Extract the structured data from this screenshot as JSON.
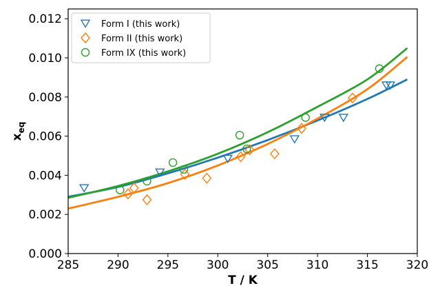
{
  "chart_data": {
    "type": "scatter",
    "title": "",
    "xlabel": "T / K",
    "ylabel_main": "x",
    "ylabel_sub": "eq",
    "xlim": [
      285,
      320
    ],
    "ylim": [
      0.0,
      0.0125
    ],
    "x_ticks": [
      "285",
      "290",
      "295",
      "300",
      "305",
      "310",
      "315",
      "320"
    ],
    "y_ticks": [
      "0.000",
      "0.002",
      "0.004",
      "0.006",
      "0.008",
      "0.010",
      "0.012"
    ],
    "grid": false,
    "legend_position": "top-left",
    "series": [
      {
        "name": "Form I (this work)",
        "color": "#1f77b4",
        "marker": "triangle-down",
        "points": [
          [
            286.6,
            0.00335
          ],
          [
            294.2,
            0.00415
          ],
          [
            301.0,
            0.00485
          ],
          [
            307.7,
            0.00585
          ],
          [
            310.7,
            0.00695
          ],
          [
            312.6,
            0.00695
          ],
          [
            316.9,
            0.0086
          ],
          [
            317.3,
            0.0086
          ]
        ],
        "fit": [
          [
            285,
            0.0029
          ],
          [
            290,
            0.0034
          ],
          [
            295,
            0.0041
          ],
          [
            300,
            0.0049
          ],
          [
            305,
            0.0058
          ],
          [
            310,
            0.0068
          ],
          [
            315,
            0.0079
          ],
          [
            319,
            0.0089
          ]
        ]
      },
      {
        "name": "Form II (this work)",
        "color": "#ff7f0e",
        "marker": "diamond",
        "points": [
          [
            291.0,
            0.00305
          ],
          [
            291.6,
            0.00335
          ],
          [
            292.9,
            0.00275
          ],
          [
            296.7,
            0.00405
          ],
          [
            298.9,
            0.00385
          ],
          [
            302.3,
            0.00495
          ],
          [
            303.2,
            0.0053
          ],
          [
            305.7,
            0.0051
          ],
          [
            308.4,
            0.0064
          ],
          [
            313.5,
            0.00795
          ]
        ],
        "fit": [
          [
            285,
            0.0023
          ],
          [
            290,
            0.0029
          ],
          [
            295,
            0.0036
          ],
          [
            300,
            0.0045
          ],
          [
            305,
            0.0056
          ],
          [
            310,
            0.0069
          ],
          [
            315,
            0.0084
          ],
          [
            319,
            0.01005
          ]
        ]
      },
      {
        "name": "Form IX (this work)",
        "color": "#2ca02c",
        "marker": "circle",
        "points": [
          [
            290.2,
            0.00325
          ],
          [
            292.9,
            0.0037
          ],
          [
            295.5,
            0.00465
          ],
          [
            296.6,
            0.0043
          ],
          [
            302.2,
            0.00605
          ],
          [
            302.9,
            0.00535
          ],
          [
            308.8,
            0.00695
          ],
          [
            316.2,
            0.00945
          ]
        ],
        "fit": [
          [
            285,
            0.00285
          ],
          [
            290,
            0.00345
          ],
          [
            295,
            0.0042
          ],
          [
            300,
            0.0051
          ],
          [
            305,
            0.0062
          ],
          [
            310,
            0.0075
          ],
          [
            315,
            0.0089
          ],
          [
            319,
            0.0105
          ]
        ]
      }
    ]
  }
}
